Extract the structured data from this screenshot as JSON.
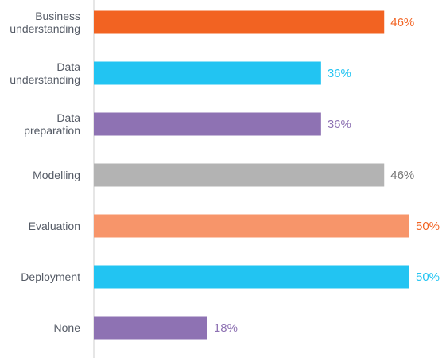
{
  "chart_data": {
    "type": "bar",
    "orientation": "horizontal",
    "title": "",
    "xlabel": "",
    "ylabel": "",
    "xlim": [
      0,
      50
    ],
    "grid": false,
    "legend": "none",
    "value_suffix": "%",
    "categories": [
      "Business understanding",
      "Data understanding",
      "Data preparation",
      "Modelling",
      "Evaluation",
      "Deployment",
      "None"
    ],
    "category_lines": [
      [
        "Business",
        "understanding"
      ],
      [
        "Data",
        "understanding"
      ],
      [
        "Data",
        "preparation"
      ],
      [
        "Modelling"
      ],
      [
        "Evaluation"
      ],
      [
        "Deployment"
      ],
      [
        "None"
      ]
    ],
    "values": [
      46,
      36,
      36,
      46,
      50,
      50,
      18
    ],
    "value_labels": [
      "46%",
      "36%",
      "36%",
      "46%",
      "50%",
      "50%",
      "18%"
    ],
    "bar_colors": [
      "#f26322",
      "#22c4f2",
      "#8e72b3",
      "#b3b3b3",
      "#f7956a",
      "#22c4f2",
      "#8e72b3"
    ],
    "label_colors": [
      "#f26322",
      "#22c4f2",
      "#8e72b3",
      "#777777",
      "#f26322",
      "#22c4f2",
      "#8e72b3"
    ],
    "axis_color": "#cccccc"
  }
}
